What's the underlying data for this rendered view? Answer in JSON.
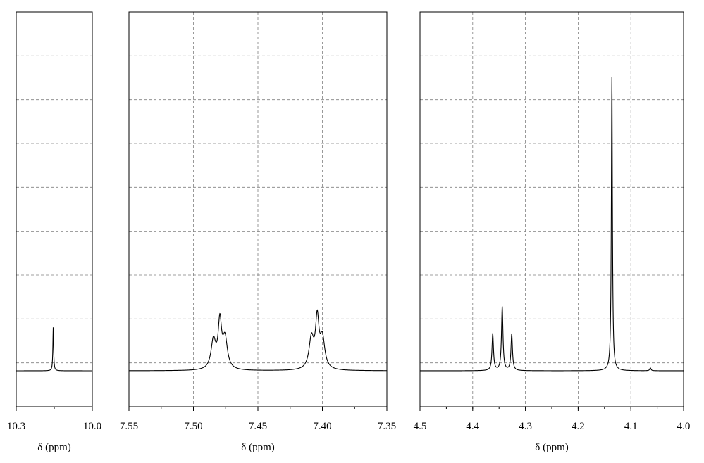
{
  "chart_data": [
    {
      "type": "line",
      "panel": "left",
      "xlabel": "δ (ppm)",
      "xlim": [
        10.3,
        10.0
      ],
      "x_reversed": true,
      "xticks": [
        "10.3",
        "10.0"
      ],
      "ylim": [
        -0.1,
        1.0
      ],
      "grid": "dashed",
      "peaks": [
        {
          "x": 10.154,
          "height": 0.122,
          "width": 0.0018
        }
      ]
    },
    {
      "type": "line",
      "panel": "middle",
      "xlabel": "δ (ppm)",
      "xlim": [
        7.55,
        7.35
      ],
      "x_reversed": true,
      "xticks": [
        "7.55",
        "7.50",
        "7.45",
        "7.40",
        "7.35"
      ],
      "ylim": [
        -0.1,
        1.0
      ],
      "grid": "dashed",
      "peaks": [
        {
          "x": 7.4845,
          "height": 0.08,
          "width": 0.0022
        },
        {
          "x": 7.4795,
          "height": 0.127,
          "width": 0.0016
        },
        {
          "x": 7.4755,
          "height": 0.084,
          "width": 0.0022
        },
        {
          "x": 7.4085,
          "height": 0.085,
          "width": 0.0022
        },
        {
          "x": 7.404,
          "height": 0.133,
          "width": 0.0016
        },
        {
          "x": 7.4,
          "height": 0.085,
          "width": 0.0022
        }
      ]
    },
    {
      "type": "line",
      "panel": "right",
      "xlabel": "δ (ppm)",
      "xlim": [
        4.5,
        4.0
      ],
      "x_reversed": true,
      "xticks": [
        "4.5",
        "4.4",
        "4.3",
        "4.2",
        "4.1",
        "4.0"
      ],
      "ylim": [
        -0.1,
        1.0
      ],
      "grid": "dashed",
      "peaks": [
        {
          "x": 4.362,
          "height": 0.103,
          "width": 0.0017
        },
        {
          "x": 4.344,
          "height": 0.178,
          "width": 0.0017
        },
        {
          "x": 4.326,
          "height": 0.102,
          "width": 0.0017
        },
        {
          "x": 4.136,
          "height": 0.818,
          "width": 0.0012
        },
        {
          "x": 4.063,
          "height": 0.008,
          "width": 0.0015
        }
      ]
    }
  ]
}
